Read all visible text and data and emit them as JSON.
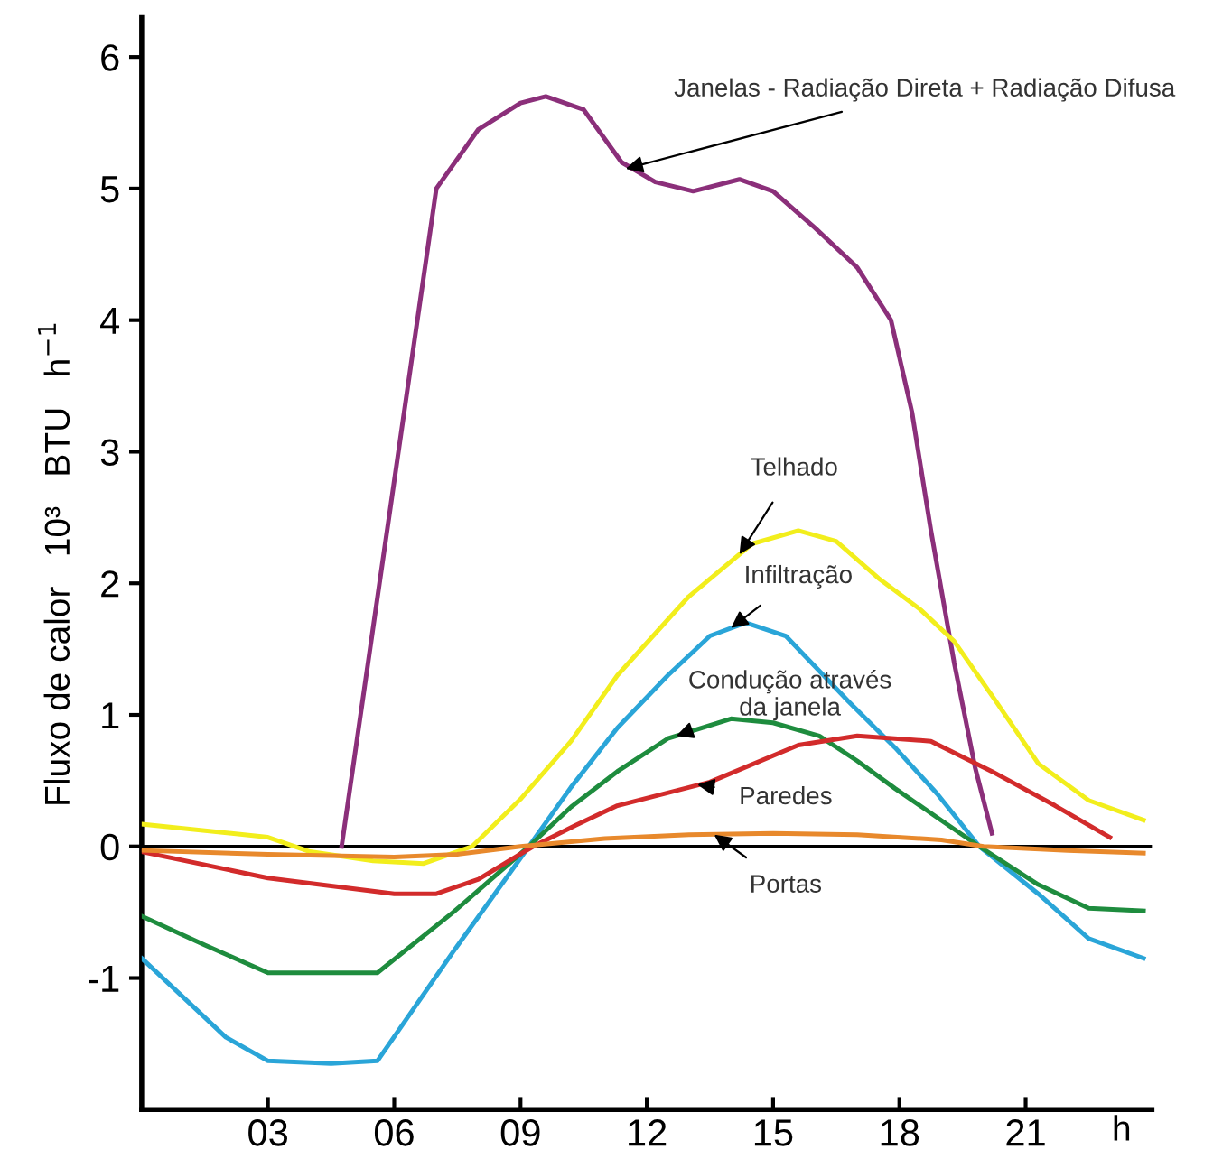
{
  "chart_data": {
    "type": "line",
    "xlabel": "h",
    "ylabel": "Fluxo de calor   10³   BTU   h$^{−1}$",
    "xlim": [
      0,
      24
    ],
    "ylim": [
      -2,
      6.3
    ],
    "xticks": [
      {
        "value": 3,
        "label": "03"
      },
      {
        "value": 6,
        "label": "06"
      },
      {
        "value": 9,
        "label": "09"
      },
      12,
      15,
      18,
      21
    ],
    "yticks": [
      -1,
      0,
      1,
      2,
      3,
      4,
      5,
      6
    ],
    "grid": false,
    "legend": false,
    "marker": "none",
    "line_style": "solid",
    "ref_lines": [
      {
        "axis": "y",
        "value": 0,
        "color": "#000000"
      }
    ],
    "series": [
      {
        "color": "#8b2f7a",
        "x": [
          4.75,
          5.65,
          7.0,
          8.0,
          9.0,
          9.6,
          10.5,
          11.4,
          12.2,
          13.1,
          14.2,
          15.0,
          16.0,
          17.0,
          17.8,
          18.3,
          18.75,
          19.3,
          19.8,
          20.2
        ],
        "values": [
          0,
          2.0,
          5.0,
          5.45,
          5.65,
          5.7,
          5.6,
          5.2,
          5.05,
          4.98,
          5.07,
          4.98,
          4.7,
          4.4,
          4.0,
          3.3,
          2.4,
          1.4,
          0.6,
          0.1
        ]
      },
      {
        "color": "#f2ee1c",
        "x": [
          0,
          3.0,
          4.0,
          5.5,
          6.7,
          7.85,
          9.0,
          10.2,
          11.3,
          13.0,
          14.5,
          15.6,
          16.5,
          17.5,
          18.5,
          19.3,
          20.3,
          21.3,
          22.5,
          23.8
        ],
        "values": [
          0.17,
          0.07,
          -0.04,
          -0.11,
          -0.13,
          0.0,
          0.36,
          0.8,
          1.3,
          1.9,
          2.3,
          2.4,
          2.32,
          2.04,
          1.8,
          1.56,
          1.1,
          0.63,
          0.35,
          0.2
        ]
      },
      {
        "color": "#2aa5d8",
        "x": [
          0,
          1.0,
          2.0,
          3.0,
          4.5,
          5.6,
          7.4,
          9.2,
          10.2,
          11.3,
          12.5,
          13.5,
          14.35,
          15.3,
          16.8,
          17.9,
          18.9,
          19.9,
          20.6,
          21.3,
          22.5,
          23.8
        ],
        "values": [
          -0.85,
          -1.15,
          -1.45,
          -1.63,
          -1.65,
          -1.63,
          -0.8,
          0.0,
          0.45,
          0.9,
          1.3,
          1.6,
          1.7,
          1.6,
          1.1,
          0.75,
          0.4,
          0.0,
          -0.18,
          -0.36,
          -0.7,
          -0.85
        ]
      },
      {
        "color": "#1e8c3e",
        "x": [
          0,
          1.5,
          3.0,
          5.6,
          7.4,
          9.2,
          10.2,
          11.3,
          12.5,
          14.0,
          15.0,
          16.1,
          17.0,
          17.9,
          18.9,
          19.9,
          21.3,
          22.5,
          23.8
        ],
        "values": [
          -0.53,
          -0.75,
          -0.96,
          -0.96,
          -0.5,
          0.0,
          0.3,
          0.57,
          0.82,
          0.97,
          0.94,
          0.84,
          0.65,
          0.44,
          0.22,
          0.0,
          -0.29,
          -0.47,
          -0.49
        ]
      },
      {
        "color": "#d22b2b",
        "x": [
          0,
          1.5,
          3.0,
          4.5,
          6.0,
          7.0,
          8.0,
          9.3,
          10.3,
          11.3,
          13.5,
          15.6,
          17.0,
          18.75,
          20.2,
          21.7,
          23.0
        ],
        "values": [
          -0.04,
          -0.14,
          -0.24,
          -0.3,
          -0.36,
          -0.36,
          -0.25,
          0.0,
          0.16,
          0.31,
          0.49,
          0.77,
          0.84,
          0.8,
          0.57,
          0.31,
          0.07
        ]
      },
      {
        "color": "#e8892c",
        "x": [
          0,
          3.0,
          6.0,
          7.5,
          9.0,
          11.0,
          13.0,
          15.0,
          17.0,
          19.0,
          20.0,
          22.0,
          23.8
        ],
        "values": [
          -0.03,
          -0.06,
          -0.08,
          -0.06,
          0.0,
          0.06,
          0.09,
          0.1,
          0.09,
          0.05,
          0.0,
          -0.03,
          -0.05
        ]
      }
    ],
    "annotations": [
      {
        "text": "Janelas - Radiação Direta + Radiação Difusa",
        "x": 11.5,
        "y": 5.15
      },
      {
        "text": "Telhado",
        "x": 14.2,
        "y": 2.22
      },
      {
        "text": "Infiltração",
        "x": 14.0,
        "y": 1.66
      },
      {
        "text": "Condução através\nda janela",
        "x": 12.7,
        "y": 0.84
      },
      {
        "text": "Paredes",
        "x": 13.2,
        "y": 0.47
      },
      {
        "text": "Portas",
        "x": 13.6,
        "y": 0.09
      }
    ]
  }
}
